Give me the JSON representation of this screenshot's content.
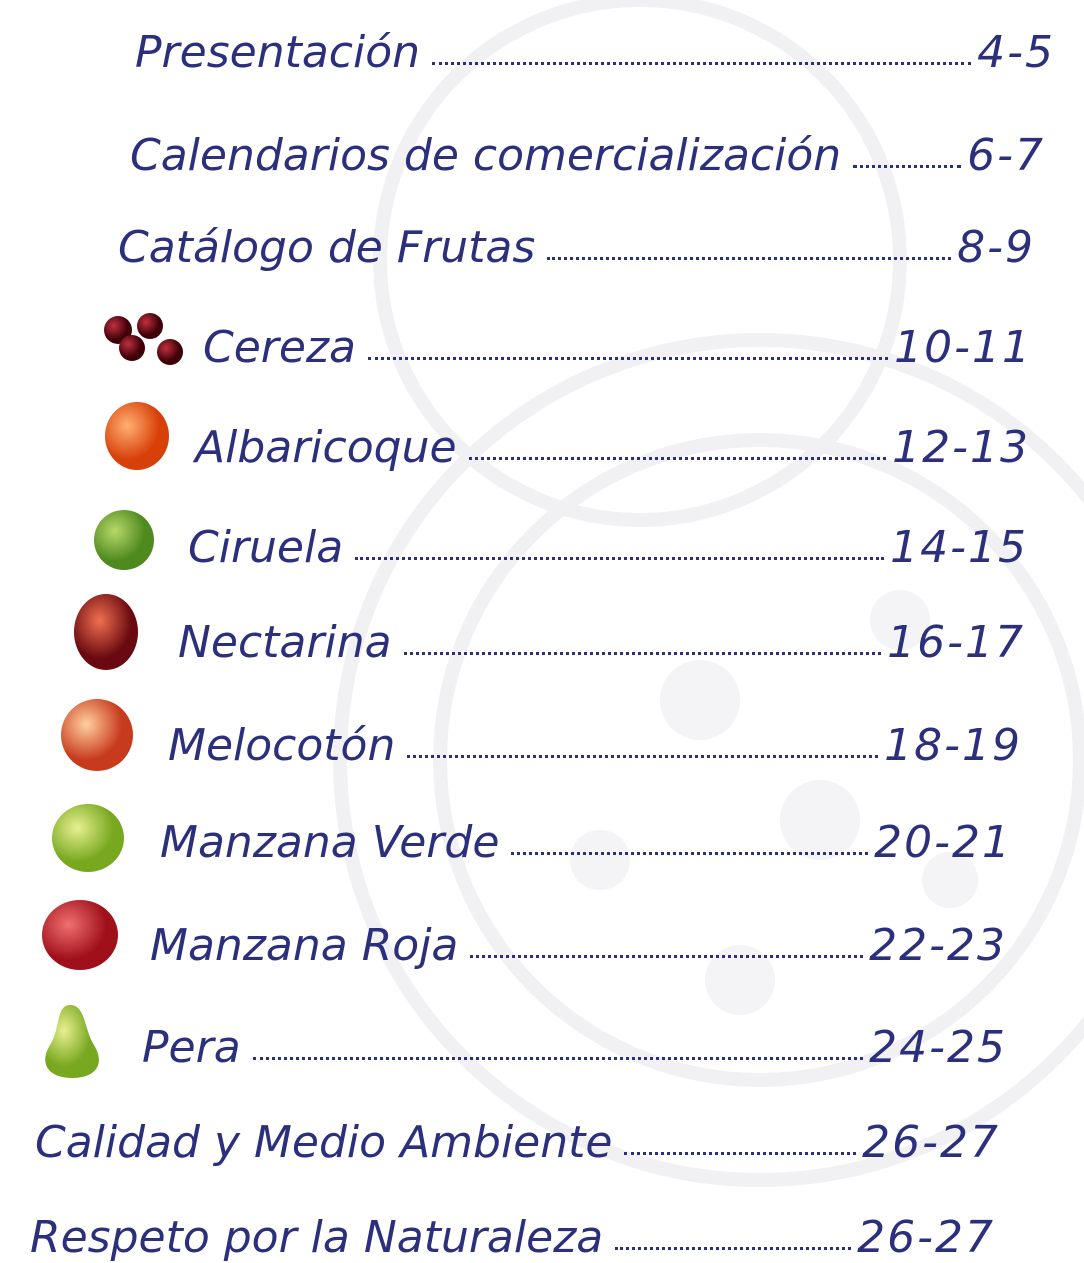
{
  "toc": {
    "entries": [
      {
        "title": "Presentación",
        "pages": "4-5"
      },
      {
        "title": "Calendarios de comercialización",
        "pages": "6-7"
      },
      {
        "title": "Catálogo de Frutas",
        "pages": "8-9"
      },
      {
        "title": "Cereza",
        "pages": "10-11"
      },
      {
        "title": "Albaricoque",
        "pages": "12-13"
      },
      {
        "title": "Ciruela",
        "pages": "14-15"
      },
      {
        "title": "Nectarina",
        "pages": "16-17"
      },
      {
        "title": "Melocotón",
        "pages": "18-19"
      },
      {
        "title": "Manzana Verde",
        "pages": "20-21"
      },
      {
        "title": "Manzana Roja",
        "pages": "22-23"
      },
      {
        "title": "Pera",
        "pages": "24-25"
      },
      {
        "title": "Calidad y Medio Ambiente",
        "pages": "26-27"
      },
      {
        "title": "Respeto por la Naturaleza",
        "pages": "26-27"
      }
    ]
  }
}
